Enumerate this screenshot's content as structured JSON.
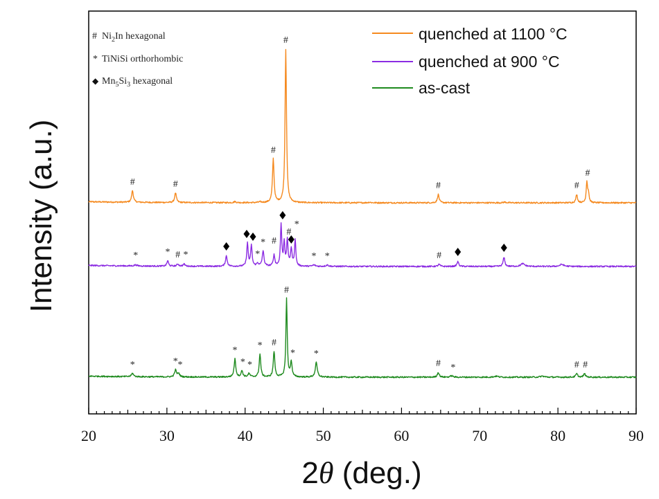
{
  "chart_data": {
    "type": "line",
    "title": "",
    "xlabel_main": "2",
    "xlabel_theta": "θ",
    "xlabel_unit": " (deg.)",
    "ylabel": "Intensity (a.u.)",
    "xlim": [
      20,
      90
    ],
    "x_ticks": [
      20,
      30,
      40,
      50,
      60,
      70,
      80,
      90
    ],
    "y_ticks_shown": false,
    "legend": {
      "placement": "top-right",
      "entries": [
        {
          "label": "quenched at 1100 °C",
          "color": "#F5891E"
        },
        {
          "label": "quenched at 900 °C",
          "color": "#8B2BE2"
        },
        {
          "label": "as-cast",
          "color": "#1E8A1E"
        }
      ]
    },
    "phase_key": {
      "placement": "top-left",
      "entries": [
        {
          "symbol": "#",
          "label_parts": [
            "Ni",
            "2",
            "In hexagonal"
          ],
          "full": "Ni2In hexagonal"
        },
        {
          "symbol": "*",
          "label_parts": [
            "TiNiSi orthorhombic"
          ],
          "full": "TiNiSi orthorhombic"
        },
        {
          "symbol": "◆",
          "label_parts": [
            "Mn",
            "5",
            "Si",
            "3",
            " hexagonal"
          ],
          "full": "Mn5Si3 hexagonal"
        }
      ]
    },
    "series": [
      {
        "name": "quenched at 1100 °C",
        "color": "#F5891E",
        "baseline": 12,
        "peaks": [
          [
            25.6,
            17,
            0.13
          ],
          [
            31.1,
            14,
            0.13
          ],
          [
            38.7,
            1.5,
            0.15
          ],
          [
            41.9,
            1.0,
            0.2
          ],
          [
            43.6,
            63,
            0.12
          ],
          [
            45.2,
            222,
            0.11
          ],
          [
            55.9,
            0.8,
            0.2
          ],
          [
            64.7,
            12,
            0.13
          ],
          [
            73.2,
            1.0,
            0.2
          ],
          [
            82.4,
            12,
            0.12
          ],
          [
            83.7,
            30,
            0.1
          ],
          [
            83.9,
            13,
            0.1
          ]
        ],
        "markers": [
          {
            "x": 25.6,
            "symbol": "#",
            "height": 20
          },
          {
            "x": 31.1,
            "symbol": "#",
            "height": 17
          },
          {
            "x": 43.6,
            "symbol": "#",
            "height": 66
          },
          {
            "x": 45.2,
            "symbol": "#",
            "height": 225
          },
          {
            "x": 64.7,
            "symbol": "#",
            "height": 15
          },
          {
            "x": 82.4,
            "symbol": "#",
            "height": 15
          },
          {
            "x": 83.8,
            "symbol": "#",
            "height": 33
          }
        ]
      },
      {
        "name": "quenched at 900 °C",
        "color": "#8B2BE2",
        "baseline": -80,
        "peaks": [
          [
            26.0,
            1.6,
            0.2
          ],
          [
            30.1,
            8,
            0.12
          ],
          [
            31.4,
            3,
            0.15
          ],
          [
            32.2,
            3,
            0.15
          ],
          [
            37.6,
            15,
            0.13
          ],
          [
            40.3,
            33,
            0.11
          ],
          [
            40.8,
            30,
            0.11
          ],
          [
            41.6,
            4,
            0.15
          ],
          [
            42.3,
            22,
            0.13
          ],
          [
            43.7,
            16,
            0.12
          ],
          [
            44.6,
            60,
            0.1
          ],
          [
            45.0,
            34,
            0.1
          ],
          [
            45.4,
            38,
            0.1
          ],
          [
            45.9,
            25,
            0.12
          ],
          [
            46.4,
            38,
            0.1
          ],
          [
            48.8,
            2,
            0.2
          ],
          [
            50.5,
            2,
            0.2
          ],
          [
            64.8,
            3,
            0.15
          ],
          [
            67.2,
            7,
            0.13
          ],
          [
            73.1,
            13,
            0.13
          ],
          [
            75.5,
            4,
            0.3
          ],
          [
            80.5,
            3,
            0.3
          ]
        ],
        "markers": [
          {
            "x": 26.0,
            "symbol": "*",
            "height": 6
          },
          {
            "x": 30.1,
            "symbol": "*",
            "height": 11
          },
          {
            "x": 31.4,
            "symbol": "#",
            "height": 7
          },
          {
            "x": 32.4,
            "symbol": "*",
            "height": 7
          },
          {
            "x": 37.6,
            "symbol": "◆",
            "height": 18
          },
          {
            "x": 40.2,
            "symbol": "◆",
            "height": 36
          },
          {
            "x": 41.0,
            "symbol": "◆",
            "height": 32
          },
          {
            "x": 41.6,
            "symbol": "*",
            "height": 8
          },
          {
            "x": 42.3,
            "symbol": "*",
            "height": 25
          },
          {
            "x": 43.7,
            "symbol": "#",
            "height": 27
          },
          {
            "x": 44.8,
            "symbol": "◆",
            "height": 63
          },
          {
            "x": 45.6,
            "symbol": "#",
            "height": 40
          },
          {
            "x": 45.9,
            "symbol": "◆",
            "height": 28
          },
          {
            "x": 46.6,
            "symbol": "*",
            "height": 51
          },
          {
            "x": 48.8,
            "symbol": "*",
            "height": 5
          },
          {
            "x": 50.5,
            "symbol": "*",
            "height": 5
          },
          {
            "x": 64.8,
            "symbol": "#",
            "height": 6
          },
          {
            "x": 67.2,
            "symbol": "◆",
            "height": 10
          },
          {
            "x": 73.1,
            "symbol": "◆",
            "height": 16
          }
        ]
      },
      {
        "name": "as-cast",
        "color": "#1E8A1E",
        "baseline": -240,
        "peaks": [
          [
            25.6,
            5,
            0.15
          ],
          [
            31.1,
            10,
            0.14
          ],
          [
            31.5,
            5,
            0.15
          ],
          [
            38.7,
            26,
            0.13
          ],
          [
            39.6,
            9,
            0.13
          ],
          [
            40.5,
            5,
            0.15
          ],
          [
            41.9,
            33,
            0.12
          ],
          [
            43.7,
            37,
            0.12
          ],
          [
            45.3,
            113,
            0.1
          ],
          [
            45.9,
            22,
            0.12
          ],
          [
            49.1,
            21,
            0.15
          ],
          [
            64.7,
            7,
            0.14
          ],
          [
            66.4,
            2,
            0.2
          ],
          [
            72.1,
            1.5,
            0.3
          ],
          [
            78,
            1.5,
            0.3
          ],
          [
            82.4,
            5,
            0.14
          ],
          [
            83.4,
            5,
            0.14
          ]
        ],
        "markers": [
          {
            "x": 25.6,
            "symbol": "*",
            "height": 8
          },
          {
            "x": 31.1,
            "symbol": "*",
            "height": 13
          },
          {
            "x": 31.7,
            "symbol": "*",
            "height": 8
          },
          {
            "x": 38.7,
            "symbol": "*",
            "height": 29
          },
          {
            "x": 39.7,
            "symbol": "*",
            "height": 12
          },
          {
            "x": 40.6,
            "symbol": "*",
            "height": 8
          },
          {
            "x": 41.9,
            "symbol": "*",
            "height": 36
          },
          {
            "x": 43.7,
            "symbol": "#",
            "height": 40
          },
          {
            "x": 45.3,
            "symbol": "#",
            "height": 116
          },
          {
            "x": 46.1,
            "symbol": "*",
            "height": 25
          },
          {
            "x": 49.1,
            "symbol": "*",
            "height": 24
          },
          {
            "x": 64.7,
            "symbol": "#",
            "height": 10
          },
          {
            "x": 66.6,
            "symbol": "*",
            "height": 4
          },
          {
            "x": 82.4,
            "symbol": "#",
            "height": 8
          },
          {
            "x": 83.5,
            "symbol": "#",
            "height": 8
          }
        ]
      }
    ]
  }
}
